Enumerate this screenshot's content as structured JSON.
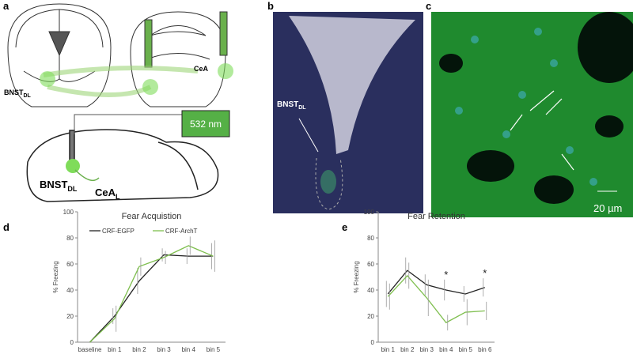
{
  "panels": {
    "a": "a",
    "b": "b",
    "c": "c",
    "d": "d",
    "e": "e"
  },
  "panel_a": {
    "laser": "532 nm",
    "bnst_top": {
      "text": "BNST",
      "sub": "DL"
    },
    "cea_top": "CeA",
    "bnst_bottom": {
      "text": "BNST",
      "sub": "DL"
    },
    "cea_bottom": {
      "text": "CeA",
      "sub": "L"
    }
  },
  "panel_b": {
    "label": {
      "text": "BNST",
      "sub": "DL"
    }
  },
  "panel_c": {
    "scale": "20 µm"
  },
  "chart_data": [
    {
      "type": "line",
      "title": "Fear Acquistion",
      "ylabel": "% Freezing",
      "categories": [
        "baseline",
        "bin 1",
        "bin 2",
        "bin 3",
        "bin 4",
        "bin 5"
      ],
      "series": [
        {
          "name": "CRF-EGFP",
          "color": "#222222",
          "values": [
            0,
            20,
            47,
            67,
            66,
            66
          ],
          "errors": [
            0,
            6,
            10,
            5,
            6,
            10
          ]
        },
        {
          "name": "CRF-ArchT",
          "color": "#7fbf4f",
          "values": [
            0,
            18,
            58,
            65,
            74,
            66
          ],
          "errors": [
            0,
            10,
            7,
            5,
            7,
            12
          ]
        }
      ],
      "ylim": [
        0,
        100
      ],
      "yticks": [
        0,
        20,
        40,
        60,
        80,
        100
      ],
      "legend": "top"
    },
    {
      "type": "line",
      "title": "Fear Retention",
      "ylabel": "% Freezing",
      "categories": [
        "bin 1",
        "bin 2",
        "bin 3",
        "bin 4",
        "bin 5",
        "bin 6"
      ],
      "series": [
        {
          "name": "CRF-EGFP",
          "color": "#222222",
          "values": [
            37,
            55,
            44,
            40,
            37,
            42
          ],
          "errors": [
            10,
            10,
            8,
            8,
            6,
            7
          ]
        },
        {
          "name": "CRF-ArchT",
          "color": "#7fbf4f",
          "values": [
            35,
            51,
            34,
            15,
            23,
            24
          ],
          "errors": [
            10,
            10,
            14,
            6,
            10,
            7
          ]
        }
      ],
      "annotations": [
        {
          "category": 3,
          "text": "*"
        },
        {
          "category": 5,
          "text": "*"
        }
      ],
      "ylim": [
        0,
        100
      ],
      "yticks": [
        0,
        20,
        40,
        60,
        80,
        100
      ]
    }
  ]
}
